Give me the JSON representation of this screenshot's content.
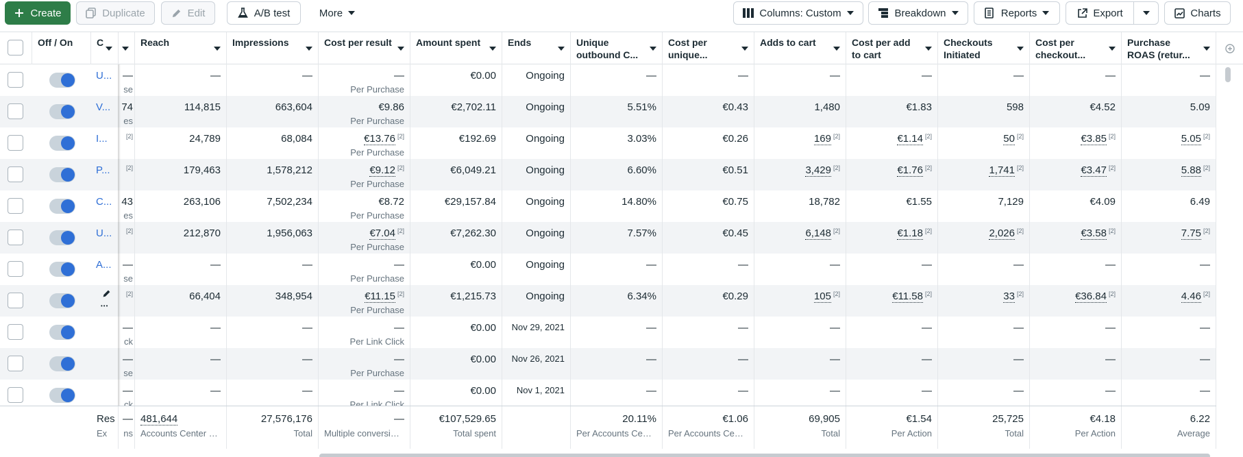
{
  "toolbar": {
    "create": "Create",
    "duplicate": "Duplicate",
    "edit": "Edit",
    "ab_test": "A/B test",
    "more": "More",
    "columns": "Columns: Custom",
    "breakdown": "Breakdown",
    "reports": "Reports",
    "export": "Export",
    "charts": "Charts"
  },
  "columns": {
    "off_on": "Off / On",
    "name_stub": "C",
    "reach": "Reach",
    "impressions": "Impressions",
    "cost_per_result": "Cost per result",
    "amount_spent": "Amount spent",
    "ends": "Ends",
    "unique_outbound": "Unique outbound C...",
    "cost_per_unique": "Cost per unique...",
    "adds_to_cart": "Adds to cart",
    "cost_per_add": "Cost per add to cart",
    "checkouts": "Checkouts Initiated",
    "cost_per_checkout": "Cost per checkout...",
    "roas": "Purchase ROAS (retur..."
  },
  "rows": [
    {
      "name": "U...",
      "c2": "—",
      "c2sub": "se",
      "reach": "—",
      "impressions": "—",
      "cpr": "—",
      "cpr_sub": "Per Purchase",
      "spent": "€0.00",
      "ends": "Ongoing",
      "unique": "—",
      "cpu": "—",
      "atc": "—",
      "cpatc": "—",
      "checkouts": "—",
      "cpc": "—",
      "roas": "—"
    },
    {
      "name": "V...",
      "c2": "74",
      "c2sub": "es",
      "reach": "114,815",
      "impressions": "663,604",
      "cpr": "€9.86",
      "cpr_sub": "Per Purchase",
      "spent": "€2,702.11",
      "ends": "Ongoing",
      "unique": "5.51%",
      "cpu": "€0.43",
      "atc": "1,480",
      "cpatc": "€1.83",
      "checkouts": "598",
      "cpc": "€4.52",
      "roas": "5.09"
    },
    {
      "name": "I...",
      "c2": "[2]",
      "c2sub": "",
      "reach": "24,789",
      "impressions": "68,084",
      "cpr": "€13.76",
      "cpr_sub": "Per Purchase",
      "spent": "€192.69",
      "ends": "Ongoing",
      "unique": "3.03%",
      "cpu": "€0.26",
      "atc": "169",
      "cpatc": "€1.14",
      "checkouts": "50",
      "cpc": "€3.85",
      "roas": "5.05"
    },
    {
      "name": "P...",
      "c2": "[2]",
      "c2sub": "",
      "reach": "179,463",
      "impressions": "1,578,212",
      "cpr": "€9.12",
      "cpr_sub": "Per Purchase",
      "spent": "€6,049.21",
      "ends": "Ongoing",
      "unique": "6.60%",
      "cpu": "€0.51",
      "atc": "3,429",
      "cpatc": "€1.76",
      "checkouts": "1,741",
      "cpc": "€3.47",
      "roas": "5.88"
    },
    {
      "name": "C...",
      "c2": "43",
      "c2sub": "es",
      "reach": "263,106",
      "impressions": "7,502,234",
      "cpr": "€8.72",
      "cpr_sub": "Per Purchase",
      "spent": "€29,157.84",
      "ends": "Ongoing",
      "unique": "14.80%",
      "cpu": "€0.75",
      "atc": "18,782",
      "cpatc": "€1.55",
      "checkouts": "7,129",
      "cpc": "€4.09",
      "roas": "6.49"
    },
    {
      "name": "U...",
      "c2": "[2]",
      "c2sub": "",
      "reach": "212,870",
      "impressions": "1,956,063",
      "cpr": "€7.04",
      "cpr_sub": "Per Purchase",
      "spent": "€7,262.30",
      "ends": "Ongoing",
      "unique": "7.57%",
      "cpu": "€0.45",
      "atc": "6,148",
      "cpatc": "€1.18",
      "checkouts": "2,026",
      "cpc": "€3.58",
      "roas": "7.75"
    },
    {
      "name": "A...",
      "c2": "—",
      "c2sub": "se",
      "reach": "—",
      "impressions": "—",
      "cpr": "—",
      "cpr_sub": "Per Purchase",
      "spent": "€0.00",
      "ends": "Ongoing",
      "unique": "—",
      "cpu": "—",
      "atc": "—",
      "cpatc": "—",
      "checkouts": "—",
      "cpc": "—",
      "roas": "—"
    },
    {
      "name": "",
      "c2": "[2]",
      "c2sub": "",
      "reach": "66,404",
      "impressions": "348,954",
      "cpr": "€11.15",
      "cpr_sub": "Per Purchase",
      "spent": "€1,215.73",
      "ends": "Ongoing",
      "unique": "6.34%",
      "cpu": "€0.29",
      "atc": "105",
      "cpatc": "€11.58",
      "checkouts": "33",
      "cpc": "€36.84",
      "roas": "4.46"
    },
    {
      "name": "",
      "c2": "—",
      "c2sub": "ck",
      "reach": "—",
      "impressions": "—",
      "cpr": "—",
      "cpr_sub": "Per Link Click",
      "spent": "€0.00",
      "ends": "Nov 29, 2021",
      "unique": "—",
      "cpu": "—",
      "atc": "—",
      "cpatc": "—",
      "checkouts": "—",
      "cpc": "—",
      "roas": "—"
    },
    {
      "name": "",
      "c2": "—",
      "c2sub": "se",
      "reach": "—",
      "impressions": "—",
      "cpr": "—",
      "cpr_sub": "Per Purchase",
      "spent": "€0.00",
      "ends": "Nov 26, 2021",
      "unique": "—",
      "cpu": "—",
      "atc": "—",
      "cpatc": "—",
      "checkouts": "—",
      "cpc": "—",
      "roas": "—"
    },
    {
      "name": "",
      "c2": "—",
      "c2sub": "ck",
      "reach": "—",
      "impressions": "—",
      "cpr": "—",
      "cpr_sub": "Per Link Click",
      "spent": "€0.00",
      "ends": "Nov 1, 2021",
      "unique": "—",
      "cpu": "—",
      "atc": "—",
      "cpatc": "—",
      "checkouts": "—",
      "cpc": "—",
      "roas": "—"
    }
  ],
  "sup_label": "[2]",
  "footer": {
    "name": "Res",
    "name_sub": "Ex",
    "c2": "—",
    "c2sub": "ns",
    "reach": "481,644",
    "reach_sub": "Accounts Center a...",
    "impressions": "27,576,176",
    "impressions_sub": "Total",
    "cpr": "—",
    "cpr_sub": "Multiple conversions",
    "spent": "€107,529.65",
    "spent_sub": "Total spent",
    "unique": "20.11%",
    "unique_sub": "Per Accounts Cent...",
    "cpu": "€1.06",
    "cpu_sub": "Per Accounts Cent...",
    "atc": "69,905",
    "atc_sub": "Total",
    "cpatc": "€1.54",
    "cpatc_sub": "Per Action",
    "checkouts": "25,725",
    "checkouts_sub": "Total",
    "cpc": "€4.18",
    "cpc_sub": "Per Action",
    "roas": "6.22",
    "roas_sub": "Average"
  },
  "colors": {
    "primary": "#2e7d48",
    "link": "#2f6fd6",
    "toggle_knob": "#2f6fd6"
  }
}
